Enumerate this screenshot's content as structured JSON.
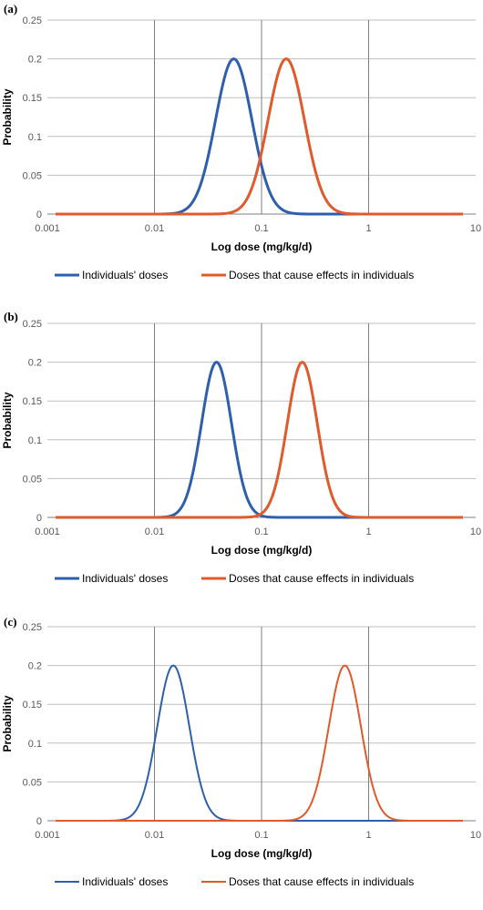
{
  "colors": {
    "individual": "#2E5FAE",
    "effect": "#E05A2B",
    "grid": "#BFBFBF",
    "decade": "#7F7F7F"
  },
  "chart_data": [
    {
      "type": "line",
      "panel_label": "(a)",
      "xlabel": "Log dose (mg/kg/d)",
      "ylabel": "Probability",
      "xscale": "log",
      "xlim": [
        0.001,
        10
      ],
      "ylim": [
        0,
        0.25
      ],
      "xticks": [
        "0.001",
        "0.01",
        "0.1",
        "1",
        "10"
      ],
      "yticks": [
        "0",
        "0.05",
        "0.1",
        "0.15",
        "0.2",
        "0.25"
      ],
      "legend": "bottom",
      "series": [
        {
          "name": "Individuals' doses",
          "color": "#2E5FAE",
          "peak_x": 0.055,
          "peak_y": 0.2,
          "log10_sd": 0.17
        },
        {
          "name": "Doses that cause effects in individuals",
          "color": "#E05A2B",
          "peak_x": 0.17,
          "peak_y": 0.2,
          "log10_sd": 0.17
        }
      ]
    },
    {
      "type": "line",
      "panel_label": "(b)",
      "xlabel": "Log dose (mg/kg/d)",
      "ylabel": "Probability",
      "xscale": "log",
      "xlim": [
        0.001,
        10
      ],
      "ylim": [
        0,
        0.25
      ],
      "xticks": [
        "0.001",
        "0.01",
        "0.1",
        "1",
        "10"
      ],
      "yticks": [
        "0",
        "0.05",
        "0.1",
        "0.15",
        "0.2",
        "0.25"
      ],
      "legend": "bottom",
      "series": [
        {
          "name": "Individuals' doses",
          "color": "#2E5FAE",
          "peak_x": 0.038,
          "peak_y": 0.2,
          "log10_sd": 0.14
        },
        {
          "name": "Doses that cause effects in individuals",
          "color": "#E05A2B",
          "peak_x": 0.24,
          "peak_y": 0.2,
          "log10_sd": 0.14
        }
      ]
    },
    {
      "type": "line",
      "panel_label": "(c)",
      "xlabel": "Log dose (mg/kg/d)",
      "ylabel": "Probability",
      "xscale": "log",
      "xlim": [
        0.001,
        10
      ],
      "ylim": [
        0,
        0.25
      ],
      "xticks": [
        "0.001",
        "0.01",
        "0.1",
        "1",
        "10"
      ],
      "yticks": [
        "0",
        "0.05",
        "0.1",
        "0.15",
        "0.2",
        "0.25"
      ],
      "legend": "bottom",
      "series": [
        {
          "name": "Individuals' doses",
          "color": "#2E5FAE",
          "peak_x": 0.015,
          "peak_y": 0.2,
          "log10_sd": 0.15
        },
        {
          "name": "Doses that cause effects in individuals",
          "color": "#E05A2B",
          "peak_x": 0.6,
          "peak_y": 0.2,
          "log10_sd": 0.15
        }
      ]
    }
  ]
}
